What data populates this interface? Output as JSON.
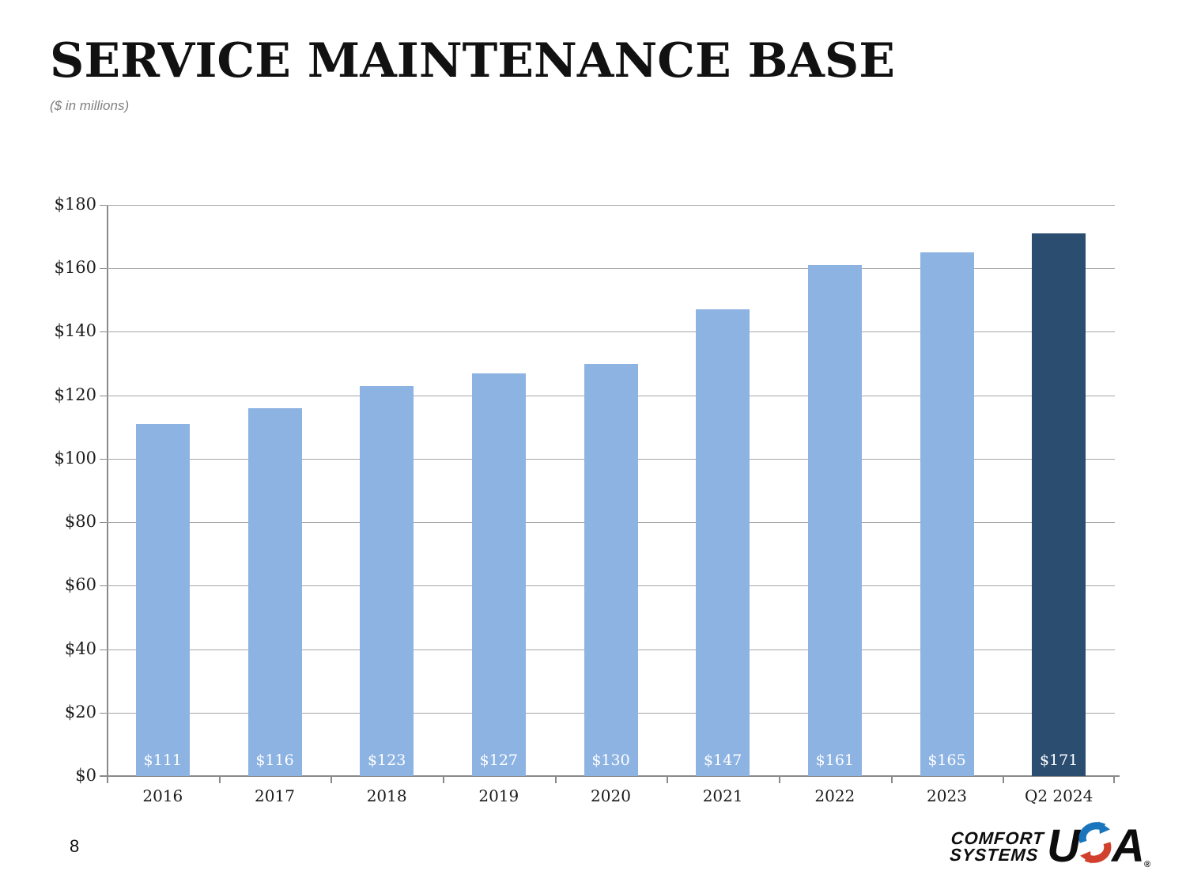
{
  "slide": {
    "title": "SERVICE MAINTENANCE BASE",
    "subtitle": "($ in millions)",
    "page_number": "8"
  },
  "chart_data": {
    "type": "bar",
    "title": "SERVICE MAINTENANCE BASE",
    "subtitle": "($ in millions)",
    "categories": [
      "2016",
      "2017",
      "2018",
      "2019",
      "2020",
      "2021",
      "2022",
      "2023",
      "Q2 2024"
    ],
    "values": [
      111,
      116,
      123,
      127,
      130,
      147,
      161,
      165,
      171
    ],
    "bar_labels": [
      "$111",
      "$116",
      "$123",
      "$127",
      "$130",
      "$147",
      "$161",
      "$165",
      "$171"
    ],
    "xlabel": "",
    "ylabel": "",
    "ylim": [
      0,
      180
    ],
    "ytick_step": 20,
    "ytick_labels": [
      "$0",
      "$20",
      "$40",
      "$60",
      "$80",
      "$100",
      "$120",
      "$140",
      "$160",
      "$180"
    ],
    "grid": true,
    "legend": false,
    "bar_color_default": "#8DB3E2",
    "bar_color_highlight": "#2A4D70",
    "highlight_index": 8,
    "value_label_color": "#FFFFFF"
  },
  "logo": {
    "line1": "COMFORT",
    "line2": "SYSTEMS",
    "usa_u": "U",
    "usa_a": "A",
    "registered": "®",
    "blue": "#1B75BC",
    "red": "#D0402C"
  }
}
